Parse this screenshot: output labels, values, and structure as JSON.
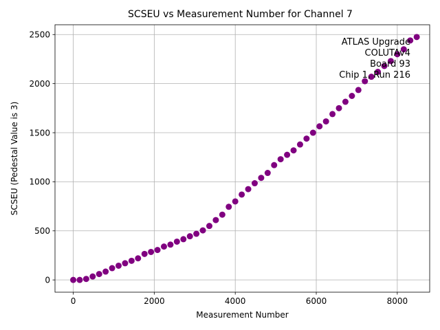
{
  "chart_data": {
    "type": "scatter",
    "title": "SCSEU vs Measurement Number for Channel 7",
    "xlabel": "Measurement Number",
    "ylabel": "SCSEU (Pedestal Value is 3)",
    "xlim": [
      -450,
      8800
    ],
    "ylim": [
      -125,
      2600
    ],
    "x_ticks": [
      0,
      2000,
      4000,
      6000,
      8000
    ],
    "y_ticks": [
      0,
      500,
      1000,
      1500,
      2000,
      2500
    ],
    "grid": true,
    "marker_color": "#800080",
    "annotation": [
      "ATLAS Upgrade",
      "COLUTAv4",
      "Board 93",
      "Chip 1, Run 216"
    ],
    "points": [
      [
        0,
        0
      ],
      [
        160,
        0
      ],
      [
        320,
        10
      ],
      [
        480,
        35
      ],
      [
        640,
        60
      ],
      [
        800,
        85
      ],
      [
        960,
        120
      ],
      [
        1120,
        145
      ],
      [
        1280,
        170
      ],
      [
        1440,
        195
      ],
      [
        1600,
        220
      ],
      [
        1760,
        265
      ],
      [
        1920,
        285
      ],
      [
        2080,
        305
      ],
      [
        2240,
        340
      ],
      [
        2400,
        360
      ],
      [
        2560,
        390
      ],
      [
        2720,
        415
      ],
      [
        2880,
        445
      ],
      [
        3040,
        470
      ],
      [
        3200,
        505
      ],
      [
        3360,
        550
      ],
      [
        3520,
        610
      ],
      [
        3680,
        665
      ],
      [
        3840,
        745
      ],
      [
        4000,
        800
      ],
      [
        4160,
        870
      ],
      [
        4320,
        925
      ],
      [
        4480,
        985
      ],
      [
        4640,
        1040
      ],
      [
        4800,
        1090
      ],
      [
        4960,
        1170
      ],
      [
        5120,
        1230
      ],
      [
        5280,
        1275
      ],
      [
        5440,
        1320
      ],
      [
        5600,
        1380
      ],
      [
        5760,
        1440
      ],
      [
        5920,
        1500
      ],
      [
        6080,
        1565
      ],
      [
        6240,
        1615
      ],
      [
        6400,
        1690
      ],
      [
        6560,
        1750
      ],
      [
        6720,
        1815
      ],
      [
        6880,
        1875
      ],
      [
        7040,
        1935
      ],
      [
        7200,
        2025
      ],
      [
        7360,
        2070
      ],
      [
        7520,
        2120
      ],
      [
        7680,
        2180
      ],
      [
        7840,
        2230
      ],
      [
        8000,
        2300
      ],
      [
        8160,
        2350
      ],
      [
        8320,
        2440
      ],
      [
        8480,
        2475
      ]
    ]
  }
}
